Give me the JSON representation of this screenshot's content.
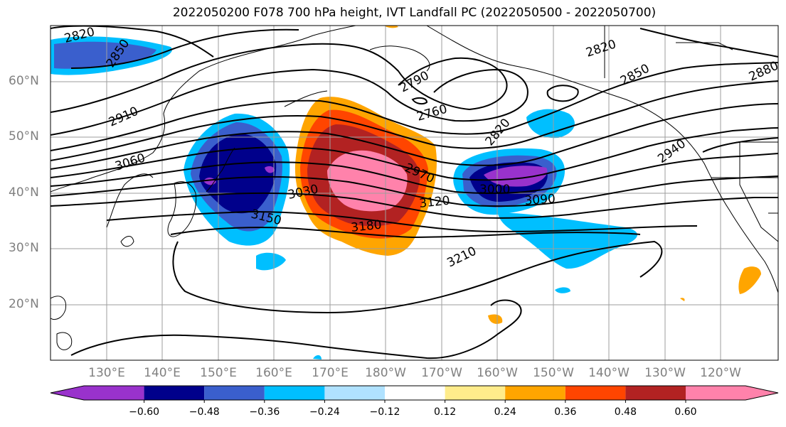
{
  "title": "2022050200 F078 700 hPa height, IVT Landfall PC (2022050500 - 2022050700)",
  "lat_labels": [
    "60°N",
    "50°N",
    "40°N",
    "30°N",
    "20°N"
  ],
  "lon_labels": [
    "130°E",
    "140°E",
    "150°E",
    "160°E",
    "170°E",
    "180°W",
    "170°W",
    "160°W",
    "150°W",
    "140°W",
    "130°W",
    "120°W"
  ],
  "contour_labels": [
    "2820",
    "2850",
    "2790",
    "2760",
    "2820",
    "2850",
    "2880",
    "2910",
    "3060",
    "2820",
    "2940",
    "2970",
    "3030",
    "3000",
    "3090",
    "3120",
    "3150",
    "3180",
    "3210"
  ],
  "colorbar": {
    "ticks": [
      "−0.60",
      "−0.48",
      "−0.36",
      "−0.24",
      "−0.12",
      "0.12",
      "0.24",
      "0.36",
      "0.48",
      "0.60"
    ],
    "colors": [
      "#9932cc",
      "#00008b",
      "#3a5fcd",
      "#00bfff",
      "#b0e2ff",
      "#ffffff",
      "#ffec8b",
      "#ffa500",
      "#ff4500",
      "#b22222",
      "#ff82ab"
    ]
  }
}
